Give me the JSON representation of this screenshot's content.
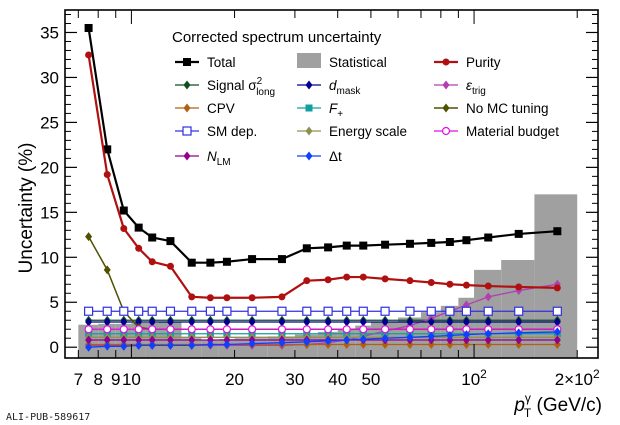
{
  "chart_data": {
    "type": "line",
    "title": "",
    "legend_title": "Corrected spectrum uncertainty",
    "xlabel": {
      "main": "p",
      "sup": "γ",
      "sub": "T",
      "unit": " (GeV/c)"
    },
    "ylabel": "Uncertainty (%)",
    "x_scale": "log",
    "xlim": [
      6.4,
      230
    ],
    "ylim": [
      -1.2,
      37.5
    ],
    "x_ticks": [
      {
        "value": 7,
        "label": "7"
      },
      {
        "value": 8,
        "label": "8"
      },
      {
        "value": 9,
        "label": "9"
      },
      {
        "value": 10,
        "label": "10"
      },
      {
        "value": 20,
        "label": "20"
      },
      {
        "value": 30,
        "label": "30"
      },
      {
        "value": 40,
        "label": "40"
      },
      {
        "value": 50,
        "label": "50"
      },
      {
        "value": 100,
        "label": "10",
        "sup": "2"
      },
      {
        "value": 200,
        "label": "2×10",
        "sup": "2"
      }
    ],
    "y_ticks": [
      0,
      5,
      10,
      15,
      20,
      25,
      30,
      35
    ],
    "footer": "ALI-PUB-589617",
    "bins": [
      [
        7,
        8
      ],
      [
        8,
        9
      ],
      [
        9,
        10
      ],
      [
        10,
        11
      ],
      [
        11,
        12
      ],
      [
        12,
        14
      ],
      [
        14,
        16
      ],
      [
        16,
        18
      ],
      [
        18,
        20
      ],
      [
        20,
        25
      ],
      [
        25,
        30
      ],
      [
        30,
        35
      ],
      [
        35,
        40
      ],
      [
        40,
        45
      ],
      [
        45,
        50
      ],
      [
        50,
        60
      ],
      [
        60,
        70
      ],
      [
        70,
        80
      ],
      [
        80,
        90
      ],
      [
        90,
        100
      ],
      [
        100,
        120
      ],
      [
        120,
        150
      ],
      [
        150,
        200
      ]
    ],
    "x": [
      7.5,
      8.5,
      9.5,
      10.5,
      11.5,
      13,
      15,
      17,
      19,
      22.5,
      27.5,
      32.5,
      37.5,
      42.5,
      47.5,
      55,
      65,
      75,
      85,
      95,
      110,
      135,
      175
    ],
    "statistical": {
      "name": "Statistical",
      "color": "#a0a0a0",
      "values": [
        2.5,
        2.6,
        2.6,
        2.7,
        2.7,
        2.8,
        1.0,
        0.8,
        0.9,
        1.0,
        1.2,
        1.4,
        1.7,
        2.0,
        2.4,
        2.8,
        3.3,
        3.9,
        4.6,
        5.5,
        8.6,
        9.7,
        17.0
      ]
    },
    "series": [
      {
        "name": "Total",
        "color": "#000000",
        "marker": "square",
        "size": 4,
        "width": 2.2,
        "values": [
          35.5,
          22,
          15.2,
          13.3,
          12.2,
          11.8,
          9.4,
          9.4,
          9.5,
          9.8,
          9.8,
          11.0,
          11.1,
          11.3,
          11.3,
          11.4,
          11.5,
          11.6,
          11.7,
          11.9,
          12.2,
          12.6,
          12.9
        ]
      },
      {
        "name": "Purity",
        "color": "#b01010",
        "marker": "circle",
        "size": 3.5,
        "width": 2.2,
        "values": [
          32.5,
          19.2,
          13.2,
          11.0,
          9.5,
          9.0,
          5.6,
          5.5,
          5.5,
          5.5,
          5.6,
          7.4,
          7.5,
          7.8,
          7.8,
          7.6,
          7.4,
          7.2,
          7.0,
          6.9,
          6.8,
          6.7,
          6.6
        ]
      },
      {
        "name": "Signal σ",
        "sup": "2",
        "sub": "long",
        "color": "#0f4f20",
        "marker": "diamond",
        "size": 3.5,
        "width": 1.3,
        "values": [
          3.0,
          3.0,
          3.0,
          3.0,
          3.0,
          3.0,
          3.0,
          3.0,
          3.0,
          3.0,
          3.0,
          3.0,
          3.0,
          3.0,
          3.0,
          3.0,
          3.0,
          3.0,
          3.0,
          3.0,
          3.0,
          3.0,
          3.0
        ]
      },
      {
        "name": "ε",
        "sub": "trig",
        "color": "#b040b0",
        "marker": "diamond",
        "size": 3.5,
        "width": 1.3,
        "values": [
          0.2,
          0.2,
          0.2,
          0.2,
          0.2,
          0.2,
          0.2,
          0.2,
          0.2,
          0.2,
          0.2,
          0.3,
          0.5,
          0.8,
          1.2,
          1.8,
          2.4,
          3.2,
          4.0,
          4.7,
          5.6,
          6.3,
          7.0
        ]
      },
      {
        "name": "CPV",
        "color": "#b06010",
        "marker": "diamond",
        "size": 3.5,
        "width": 1.3,
        "values": [
          0.3,
          0.3,
          0.3,
          0.3,
          0.3,
          0.3,
          0.3,
          0.3,
          0.3,
          0.3,
          0.3,
          0.3,
          0.3,
          0.3,
          0.3,
          0.3,
          0.3,
          0.3,
          0.3,
          0.3,
          0.3,
          0.3,
          0.3
        ]
      },
      {
        "name": "d",
        "sub": "mask",
        "color": "#000090",
        "marker": "diamond",
        "size": 3.5,
        "width": 1.3,
        "values": [
          2.8,
          2.8,
          2.8,
          2.8,
          2.8,
          2.8,
          2.8,
          2.8,
          2.8,
          2.8,
          2.8,
          2.8,
          2.8,
          2.8,
          2.8,
          2.8,
          2.8,
          2.8,
          2.8,
          2.8,
          2.8,
          2.8,
          2.8
        ]
      },
      {
        "name": "No MC tuning",
        "color": "#505000",
        "marker": "diamond",
        "size": 3.5,
        "width": 1.5,
        "values": [
          12.3,
          8.6,
          4.0,
          2.2,
          2.0,
          2.0,
          2.0,
          2.0,
          2.0,
          2.0,
          2.0,
          2.0,
          2.0,
          2.0,
          2.0,
          2.0,
          2.0,
          2.0,
          2.0,
          2.0,
          2.0,
          2.0,
          2.0
        ]
      },
      {
        "name": "F",
        "sub": "+",
        "color": "#10a0a0",
        "marker": "square",
        "size": 3.5,
        "width": 1.3,
        "values": [
          1.5,
          1.5,
          1.5,
          1.5,
          1.5,
          1.5,
          1.5,
          1.5,
          1.5,
          1.5,
          1.5,
          1.5,
          1.5,
          1.5,
          1.5,
          1.5,
          1.5,
          1.5,
          1.5,
          1.5,
          1.5,
          1.5,
          1.5
        ]
      },
      {
        "name": "SM dep.",
        "color": "#3030e0",
        "marker": "open-square",
        "size": 4,
        "width": 1.3,
        "values": [
          4.0,
          4.0,
          4.0,
          4.0,
          4.0,
          4.0,
          4.0,
          4.0,
          4.0,
          4.0,
          4.0,
          4.0,
          4.0,
          4.0,
          4.0,
          4.0,
          4.0,
          4.0,
          4.0,
          4.0,
          4.0,
          4.0,
          4.0
        ]
      },
      {
        "name": "Energy scale",
        "color": "#909050",
        "marker": "diamond",
        "size": 3.5,
        "width": 1.3,
        "values": [
          1.1,
          1.1,
          1.1,
          1.1,
          1.1,
          1.1,
          1.1,
          1.1,
          1.1,
          1.1,
          1.1,
          1.1,
          1.1,
          1.1,
          1.1,
          1.1,
          1.1,
          1.1,
          1.1,
          1.1,
          1.1,
          1.1,
          1.1
        ]
      },
      {
        "name": "Material budget",
        "color": "#e010e0",
        "marker": "open-circle",
        "size": 3.5,
        "width": 1.3,
        "values": [
          2.0,
          2.0,
          2.0,
          2.0,
          2.0,
          2.0,
          2.0,
          2.0,
          2.0,
          2.0,
          2.0,
          2.0,
          2.0,
          2.0,
          2.0,
          2.0,
          2.0,
          2.0,
          2.0,
          2.0,
          2.0,
          2.0,
          2.0
        ]
      },
      {
        "name": "N",
        "sub": "LM",
        "color": "#900090",
        "marker": "diamond",
        "size": 3.5,
        "width": 1.3,
        "values": [
          0.8,
          0.8,
          0.8,
          0.8,
          0.8,
          0.8,
          0.8,
          0.8,
          0.8,
          0.8,
          0.8,
          0.8,
          0.8,
          0.8,
          0.8,
          0.8,
          0.8,
          0.8,
          0.8,
          0.8,
          0.8,
          0.8,
          0.8
        ]
      },
      {
        "name": "Δt",
        "color": "#1040ff",
        "marker": "diamond",
        "size": 3.5,
        "width": 1.3,
        "values": [
          0.0,
          0.1,
          0.1,
          0.2,
          0.2,
          0.2,
          0.2,
          0.3,
          0.3,
          0.4,
          0.5,
          0.6,
          0.7,
          0.8,
          0.9,
          1.0,
          1.1,
          1.2,
          1.3,
          1.4,
          1.5,
          1.6,
          1.7
        ]
      }
    ],
    "legend_layout": [
      [
        "Total",
        "Statistical",
        "Purity"
      ],
      [
        "Signal σ",
        "d",
        "ε"
      ],
      [
        "CPV",
        "F",
        "No MC tuning"
      ],
      [
        "SM dep.",
        "Energy scale",
        "Material budget"
      ],
      [
        "N",
        "Δt",
        null
      ]
    ]
  }
}
